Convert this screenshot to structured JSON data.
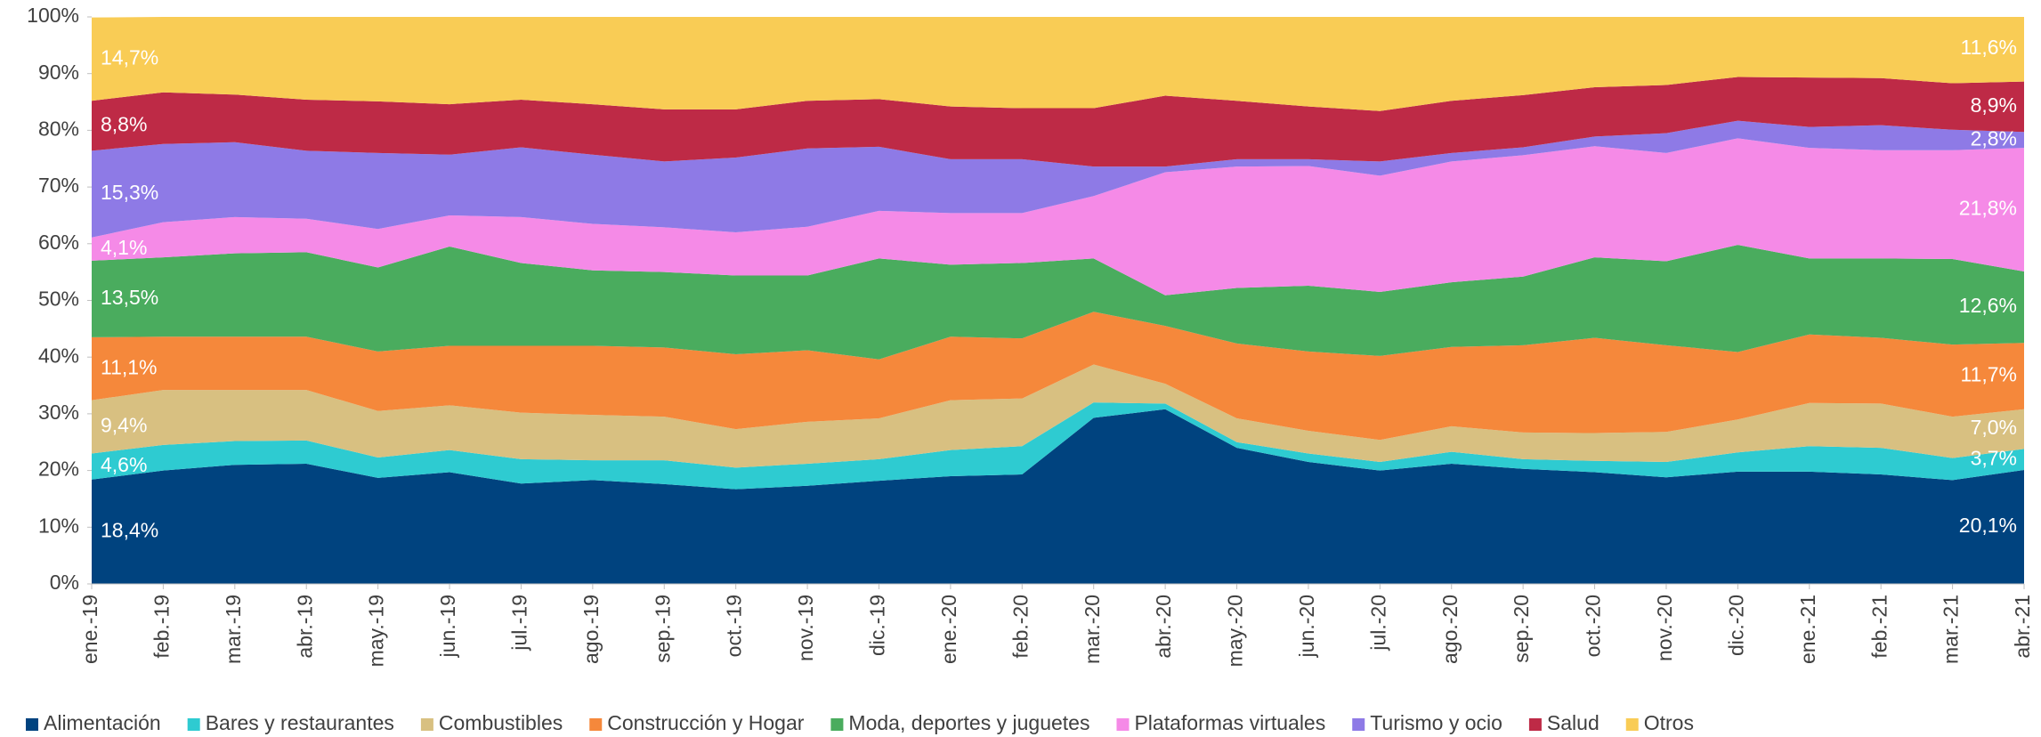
{
  "chart_data": {
    "type": "stacked_area_100",
    "categories": [
      "ene.-19",
      "feb.-19",
      "mar.-19",
      "abr.-19",
      "may.-19",
      "jun.-19",
      "jul.-19",
      "ago.-19",
      "sep.-19",
      "oct.-19",
      "nov.-19",
      "dic.-19",
      "ene.-20",
      "feb.-20",
      "mar.-20",
      "abr.-20",
      "may.-20",
      "jun.-20",
      "jul.-20",
      "ago.-20",
      "sep.-20",
      "oct.-20",
      "nov.-20",
      "dic.-20",
      "ene.-21",
      "feb.-21",
      "mar.-21",
      "abr.-21"
    ],
    "ylim": [
      0,
      100
    ],
    "yticks": [
      {
        "value": 0,
        "label": "0%"
      },
      {
        "value": 10,
        "label": "10%"
      },
      {
        "value": 20,
        "label": "20%"
      },
      {
        "value": 30,
        "label": "30%"
      },
      {
        "value": 40,
        "label": "40%"
      },
      {
        "value": 50,
        "label": "50%"
      },
      {
        "value": 60,
        "label": "60%"
      },
      {
        "value": 70,
        "label": "70%"
      },
      {
        "value": 80,
        "label": "80%"
      },
      {
        "value": 90,
        "label": "90%"
      },
      {
        "value": 100,
        "label": "100%"
      }
    ],
    "legend": "bottom",
    "series": [
      {
        "name": "Alimentación",
        "color": "#00437f",
        "values": [
          18.4,
          20,
          21,
          21.2,
          18.7,
          19.7,
          17.7,
          18.3,
          17.6,
          16.7,
          17.3,
          18.2,
          19,
          19.3,
          29.3,
          30.8,
          24,
          21.5,
          20,
          21.2,
          20.3,
          19.7,
          18.8,
          19.8,
          19.8,
          19.3,
          18.3,
          20.1
        ],
        "value_labels": [
          "18,4%",
          null,
          null,
          null,
          null,
          null,
          null,
          null,
          null,
          null,
          null,
          null,
          null,
          null,
          null,
          null,
          null,
          null,
          null,
          null,
          null,
          null,
          null,
          null,
          null,
          null,
          null,
          "20,1%"
        ]
      },
      {
        "name": "Bares y restaurantes",
        "color": "#2ecbd1",
        "values": [
          4.6,
          4.5,
          4.2,
          4.1,
          3.6,
          3.9,
          4.3,
          3.5,
          4.2,
          3.8,
          3.9,
          3.8,
          4.6,
          5.0,
          2.7,
          1.0,
          1.0,
          1.5,
          1.5,
          2.1,
          1.7,
          2.0,
          2.7,
          3.4,
          4.5,
          4.7,
          3.9,
          3.7
        ],
        "value_labels": [
          "4,6%",
          null,
          null,
          null,
          null,
          null,
          null,
          null,
          null,
          null,
          null,
          null,
          null,
          null,
          null,
          null,
          null,
          null,
          null,
          null,
          null,
          null,
          null,
          null,
          null,
          null,
          null,
          "3,7%"
        ]
      },
      {
        "name": "Combustibles",
        "color": "#d8c081",
        "values": [
          9.4,
          9.7,
          9.0,
          8.9,
          8.2,
          7.9,
          8.2,
          8.0,
          7.7,
          6.8,
          7.4,
          7.2,
          8.8,
          8.4,
          6.7,
          3.5,
          4.2,
          4.0,
          3.9,
          4.5,
          4.7,
          4.9,
          5.3,
          5.8,
          7.6,
          7.8,
          7.3,
          7.0
        ],
        "value_labels": [
          "9,4%",
          null,
          null,
          null,
          null,
          null,
          null,
          null,
          null,
          null,
          null,
          null,
          null,
          null,
          null,
          null,
          null,
          null,
          null,
          null,
          null,
          null,
          null,
          null,
          null,
          null,
          null,
          "7,0%"
        ]
      },
      {
        "name": "Construcción y Hogar",
        "color": "#f5883b",
        "values": [
          11.1,
          9.4,
          9.4,
          9.4,
          10.5,
          10.5,
          11.8,
          12.2,
          12.2,
          13.2,
          12.6,
          10.4,
          11.2,
          10.6,
          9.3,
          10.2,
          13.2,
          14.0,
          14.8,
          14.0,
          15.4,
          16.8,
          15.3,
          11.9,
          12.1,
          11.6,
          12.7,
          11.7
        ],
        "value_labels": [
          "11,1%",
          null,
          null,
          null,
          null,
          null,
          null,
          null,
          null,
          null,
          null,
          null,
          null,
          null,
          null,
          null,
          null,
          null,
          null,
          null,
          null,
          null,
          null,
          null,
          null,
          null,
          null,
          "11,7%"
        ]
      },
      {
        "name": "Moda, deportes y juguetes",
        "color": "#4aac5e",
        "values": [
          13.5,
          14.0,
          14.7,
          14.9,
          14.8,
          17.5,
          14.6,
          13.3,
          13.3,
          13.9,
          13.2,
          17.8,
          12.7,
          13.3,
          9.4,
          5.4,
          9.8,
          11.6,
          11.3,
          11.4,
          12.1,
          14.2,
          14.8,
          18.9,
          13.4,
          14.0,
          15.1,
          12.6
        ],
        "value_labels": [
          "13,5%",
          null,
          null,
          null,
          null,
          null,
          null,
          null,
          null,
          null,
          null,
          null,
          null,
          null,
          null,
          null,
          null,
          null,
          null,
          null,
          null,
          null,
          null,
          null,
          null,
          null,
          null,
          "12,6%"
        ]
      },
      {
        "name": "Plataformas virtuales",
        "color": "#f58ae7",
        "values": [
          4.1,
          6.2,
          6.4,
          5.9,
          6.8,
          5.5,
          8.1,
          8.2,
          7.9,
          7.6,
          8.6,
          8.4,
          9.1,
          8.8,
          11.0,
          21.7,
          21.4,
          21.1,
          20.5,
          21.3,
          21.4,
          19.6,
          19.1,
          18.8,
          19.5,
          19.1,
          19.2,
          21.8
        ],
        "value_labels": [
          "4,1%",
          null,
          null,
          null,
          null,
          null,
          null,
          null,
          null,
          null,
          null,
          null,
          null,
          null,
          null,
          null,
          null,
          null,
          null,
          null,
          null,
          null,
          null,
          null,
          null,
          null,
          null,
          "21,8%"
        ]
      },
      {
        "name": "Turismo y ocio",
        "color": "#8e7ae6",
        "values": [
          15.3,
          13.8,
          13.2,
          12.0,
          13.4,
          10.7,
          12.3,
          12.2,
          11.6,
          13.2,
          13.8,
          11.3,
          9.5,
          9.5,
          5.2,
          1.0,
          1.3,
          1.2,
          2.5,
          1.5,
          1.4,
          1.7,
          3.5,
          3.1,
          3.7,
          4.4,
          3.6,
          2.8
        ],
        "value_labels": [
          "15,3%",
          null,
          null,
          null,
          null,
          null,
          null,
          null,
          null,
          null,
          null,
          null,
          null,
          null,
          null,
          null,
          null,
          null,
          null,
          null,
          null,
          null,
          null,
          null,
          null,
          null,
          null,
          "2,8%"
        ]
      },
      {
        "name": "Salud",
        "color": "#be2a46",
        "values": [
          8.8,
          9.1,
          8.4,
          9.0,
          9.1,
          8.9,
          8.4,
          8.9,
          9.2,
          8.5,
          8.4,
          8.4,
          9.3,
          9.0,
          10.3,
          12.5,
          10.3,
          9.3,
          8.9,
          9.2,
          9.2,
          8.7,
          8.5,
          7.7,
          8.7,
          8.3,
          8.2,
          8.9
        ],
        "value_labels": [
          "8,8%",
          null,
          null,
          null,
          null,
          null,
          null,
          null,
          null,
          null,
          null,
          null,
          null,
          null,
          null,
          null,
          null,
          null,
          null,
          null,
          null,
          null,
          null,
          null,
          null,
          null,
          null,
          "8,9%"
        ]
      },
      {
        "name": "Otros",
        "color": "#f9cc55",
        "values": [
          14.7,
          13.3,
          13.7,
          14.6,
          14.9,
          15.4,
          14.6,
          15.4,
          16.3,
          16.3,
          14.8,
          14.5,
          15.8,
          16.1,
          16.1,
          13.9,
          14.8,
          15.8,
          16.6,
          14.8,
          13.8,
          12.4,
          12.0,
          10.6,
          10.7,
          10.8,
          11.7,
          11.6
        ],
        "value_labels": [
          "14,7%",
          null,
          null,
          null,
          null,
          null,
          null,
          null,
          null,
          null,
          null,
          null,
          null,
          null,
          null,
          null,
          null,
          null,
          null,
          null,
          null,
          null,
          null,
          null,
          null,
          null,
          null,
          "11,6%"
        ]
      }
    ]
  }
}
